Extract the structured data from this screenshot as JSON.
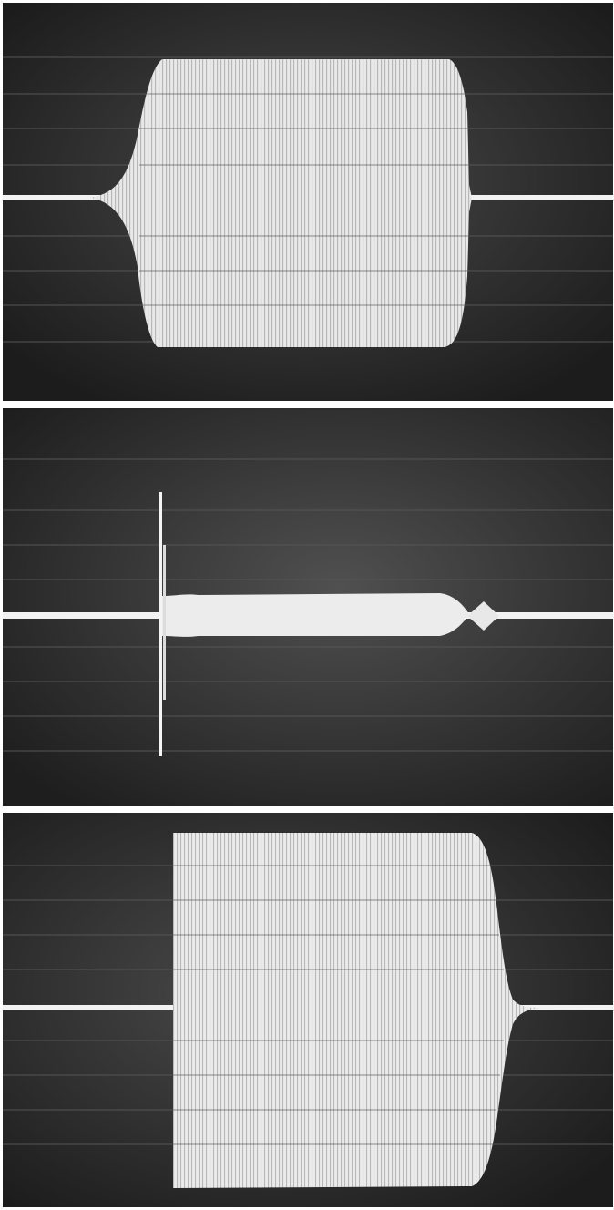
{
  "figure": {
    "panels": [
      {
        "id": "top",
        "description_tag": "burst-envelope-gradual-rise-and-fall"
      },
      {
        "id": "middle",
        "description_tag": "transient-spike-with-low-amplitude-tail"
      },
      {
        "id": "bottom",
        "description_tag": "burst-envelope-abrupt-start-gradual-decay"
      }
    ],
    "colors": {
      "screen": "#2e2e2e",
      "graticule": "#4a4a4a",
      "trace": "#f2f2f2",
      "separator": "#ffffff"
    }
  }
}
